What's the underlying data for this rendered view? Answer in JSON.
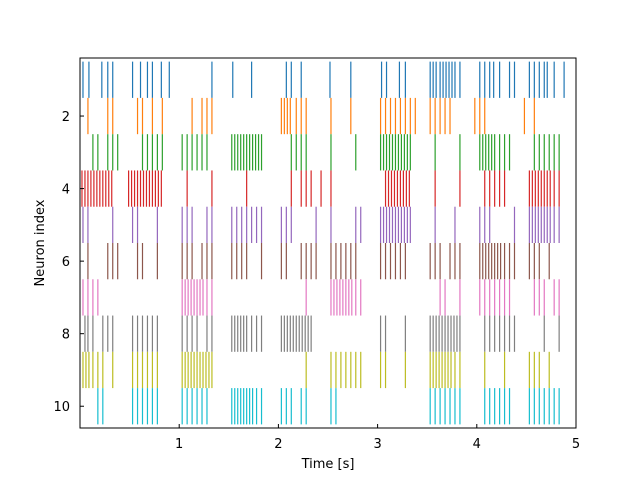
{
  "chart_data": {
    "type": "eventplot",
    "title": "",
    "xlabel": "Time [s]",
    "ylabel": "Neuron index",
    "xlim": [
      0.0,
      5.0
    ],
    "ylim": [
      10.6,
      0.4
    ],
    "y_inverted": true,
    "xticks": [
      1,
      2,
      3,
      4,
      5
    ],
    "yticks": [
      2,
      4,
      6,
      8,
      10
    ],
    "grid": false,
    "legend": "none",
    "line_length": 1.0,
    "series": [
      {
        "neuron": 1,
        "color": "#1f77b4",
        "spikes": [
          0.03,
          0.09,
          0.22,
          0.28,
          0.33,
          0.53,
          0.61,
          0.68,
          0.73,
          0.82,
          0.9,
          1.33,
          1.54,
          1.73,
          2.08,
          2.13,
          2.23,
          2.52,
          2.73,
          3.04,
          3.09,
          3.22,
          3.28,
          3.53,
          3.56,
          3.59,
          3.63,
          3.66,
          3.69,
          3.72,
          3.75,
          3.78,
          3.83,
          4.03,
          4.08,
          4.13,
          4.17,
          4.23,
          4.33,
          4.38,
          4.53,
          4.58,
          4.63,
          4.68,
          4.71,
          4.78,
          4.88
        ]
      },
      {
        "neuron": 2,
        "color": "#ff7f0e",
        "spikes": [
          0.08,
          0.28,
          0.33,
          0.58,
          0.63,
          0.73,
          0.83,
          1.13,
          1.23,
          1.28,
          1.33,
          2.03,
          2.06,
          2.09,
          2.12,
          2.18,
          2.23,
          2.28,
          2.53,
          2.73,
          3.03,
          3.08,
          3.13,
          3.18,
          3.23,
          3.28,
          3.33,
          3.38,
          3.53,
          3.58,
          3.63,
          3.68,
          3.73,
          3.98,
          4.03,
          4.08,
          4.48,
          4.58
        ]
      },
      {
        "neuron": 3,
        "color": "#2ca02c",
        "spikes": [
          0.13,
          0.18,
          0.28,
          0.33,
          0.38,
          0.63,
          0.68,
          0.73,
          0.78,
          0.83,
          1.03,
          1.08,
          1.13,
          1.18,
          1.23,
          1.28,
          1.53,
          1.56,
          1.59,
          1.62,
          1.65,
          1.68,
          1.71,
          1.74,
          1.77,
          1.8,
          1.83,
          2.13,
          2.18,
          2.23,
          2.28,
          2.53,
          2.78,
          3.03,
          3.06,
          3.09,
          3.12,
          3.15,
          3.18,
          3.21,
          3.24,
          3.27,
          3.3,
          3.33,
          3.58,
          3.83,
          4.03,
          4.06,
          4.09,
          4.12,
          4.15,
          4.18,
          4.23,
          4.28,
          4.33,
          4.58,
          4.63,
          4.68,
          4.73,
          4.78,
          4.83
        ]
      },
      {
        "neuron": 4,
        "color": "#d62728",
        "spikes": [
          0.02,
          0.05,
          0.08,
          0.11,
          0.14,
          0.17,
          0.2,
          0.23,
          0.26,
          0.29,
          0.32,
          0.49,
          0.52,
          0.55,
          0.58,
          0.61,
          0.64,
          0.67,
          0.7,
          0.73,
          0.76,
          0.79,
          0.82,
          1.08,
          1.33,
          1.68,
          2.13,
          2.23,
          2.28,
          2.33,
          2.43,
          2.53,
          3.08,
          3.11,
          3.14,
          3.17,
          3.2,
          3.23,
          3.26,
          3.29,
          3.32,
          3.58,
          3.83,
          4.08,
          4.13,
          4.18,
          4.23,
          4.28,
          4.53,
          4.56,
          4.59,
          4.62,
          4.65,
          4.68,
          4.71,
          4.74,
          4.78,
          4.83
        ]
      },
      {
        "neuron": 5,
        "color": "#9467bd",
        "spikes": [
          0.03,
          0.08,
          0.33,
          0.53,
          0.58,
          0.78,
          1.03,
          1.08,
          1.13,
          1.28,
          1.33,
          1.53,
          1.58,
          1.63,
          1.68,
          1.73,
          1.78,
          1.83,
          2.03,
          2.08,
          2.13,
          2.38,
          2.53,
          2.78,
          2.83,
          3.03,
          3.06,
          3.09,
          3.12,
          3.15,
          3.18,
          3.21,
          3.24,
          3.27,
          3.3,
          3.33,
          3.58,
          3.78,
          4.03,
          4.08,
          4.13,
          4.38,
          4.53,
          4.56,
          4.59,
          4.62,
          4.65,
          4.68,
          4.71,
          4.74,
          4.78,
          4.83
        ]
      },
      {
        "neuron": 6,
        "color": "#8c564b",
        "spikes": [
          0.08,
          0.28,
          0.33,
          0.38,
          0.58,
          0.63,
          0.78,
          1.03,
          1.08,
          1.13,
          1.23,
          1.28,
          1.33,
          1.53,
          1.58,
          1.63,
          1.68,
          1.83,
          2.03,
          2.08,
          2.23,
          2.28,
          2.33,
          2.38,
          2.53,
          2.58,
          2.63,
          2.68,
          2.73,
          2.78,
          3.03,
          3.08,
          3.13,
          3.18,
          3.23,
          3.28,
          3.53,
          3.58,
          3.63,
          3.73,
          3.78,
          3.83,
          4.03,
          4.06,
          4.09,
          4.12,
          4.15,
          4.18,
          4.21,
          4.24,
          4.28,
          4.33,
          4.38,
          4.53,
          4.58,
          4.63,
          4.73
        ]
      },
      {
        "neuron": 7,
        "color": "#e377c2",
        "spikes": [
          0.03,
          0.08,
          0.13,
          0.18,
          1.03,
          1.06,
          1.09,
          1.12,
          1.15,
          1.18,
          1.21,
          1.24,
          1.28,
          1.33,
          2.28,
          2.53,
          2.56,
          2.59,
          2.62,
          2.65,
          2.68,
          2.71,
          2.74,
          2.78,
          2.83,
          3.63,
          3.68,
          3.83,
          4.03,
          4.08,
          4.13,
          4.18,
          4.23,
          4.28,
          4.33,
          4.58,
          4.63,
          4.68,
          4.78,
          4.83
        ]
      },
      {
        "neuron": 8,
        "color": "#7f7f7f",
        "spikes": [
          0.05,
          0.08,
          0.13,
          0.23,
          0.28,
          0.33,
          0.53,
          0.58,
          0.63,
          0.68,
          0.73,
          0.78,
          1.03,
          1.08,
          1.13,
          1.18,
          1.28,
          1.33,
          1.53,
          1.56,
          1.59,
          1.62,
          1.65,
          1.68,
          1.73,
          1.78,
          1.83,
          2.03,
          2.06,
          2.09,
          2.12,
          2.15,
          2.18,
          2.21,
          2.24,
          2.27,
          2.3,
          2.33,
          3.03,
          3.08,
          3.28,
          3.53,
          3.56,
          3.59,
          3.62,
          3.65,
          3.68,
          3.71,
          3.74,
          3.77,
          3.8,
          3.83,
          4.08,
          4.13,
          4.18,
          4.23,
          4.28,
          4.33,
          4.38,
          4.68,
          4.83
        ]
      },
      {
        "neuron": 9,
        "color": "#bcbd22",
        "spikes": [
          0.03,
          0.06,
          0.09,
          0.13,
          0.18,
          0.23,
          0.33,
          0.53,
          0.58,
          0.63,
          0.68,
          0.73,
          0.78,
          1.03,
          1.06,
          1.09,
          1.12,
          1.15,
          1.18,
          1.21,
          1.24,
          1.27,
          1.3,
          1.33,
          2.28,
          2.53,
          2.58,
          2.63,
          2.68,
          2.73,
          2.78,
          2.83,
          3.03,
          3.08,
          3.28,
          3.53,
          3.56,
          3.59,
          3.62,
          3.65,
          3.68,
          3.71,
          3.74,
          3.78,
          3.83,
          4.08,
          4.28,
          4.53,
          4.58,
          4.63,
          4.73
        ]
      },
      {
        "neuron": 10,
        "color": "#17becf",
        "spikes": [
          0.18,
          0.23,
          0.53,
          0.58,
          0.63,
          0.68,
          0.73,
          0.78,
          1.03,
          1.08,
          1.13,
          1.18,
          1.23,
          1.28,
          1.53,
          1.56,
          1.59,
          1.62,
          1.65,
          1.68,
          1.71,
          1.74,
          1.78,
          1.83,
          2.03,
          2.08,
          2.13,
          2.23,
          2.28,
          2.53,
          2.58,
          3.53,
          3.58,
          3.63,
          3.68,
          3.73,
          3.78,
          3.83,
          4.08,
          4.13,
          4.18,
          4.23,
          4.28,
          4.33,
          4.53,
          4.58,
          4.63,
          4.68,
          4.73,
          4.78,
          4.83
        ]
      }
    ]
  }
}
